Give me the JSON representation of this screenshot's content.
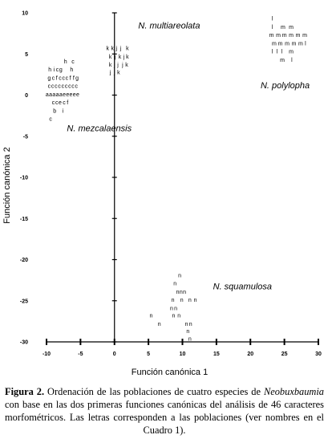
{
  "chart_data": {
    "type": "scatter",
    "xlabel": "Función canónica 1",
    "ylabel": "Función canónica 2",
    "xlim": [
      -10,
      30
    ],
    "ylim": [
      -30,
      10
    ],
    "xticks": [
      -10,
      -5,
      0,
      5,
      10,
      15,
      20,
      25,
      30
    ],
    "yticks": [
      10,
      5,
      0,
      -5,
      -10,
      -15,
      -20,
      -25,
      -30
    ],
    "grid": false,
    "groups": [
      {
        "label": "N. multiareolata",
        "label_pos": [
          3.5,
          8.5
        ]
      },
      {
        "label": "N. polylopha",
        "label_pos": [
          21.5,
          1.2
        ]
      },
      {
        "label": "N. mezcalaensis",
        "label_pos": [
          -7,
          -4
        ]
      },
      {
        "label": "N. squamulosa",
        "label_pos": [
          14.5,
          -23.2
        ]
      }
    ],
    "points": [
      {
        "t": "k",
        "x": -1.0,
        "y": 5.7
      },
      {
        "t": "k",
        "x": -0.3,
        "y": 5.7
      },
      {
        "t": "j",
        "x": 0.3,
        "y": 5.7
      },
      {
        "t": "j",
        "x": 0.9,
        "y": 5.7
      },
      {
        "t": "k",
        "x": 1.9,
        "y": 5.7
      },
      {
        "t": "k",
        "x": -0.6,
        "y": 4.7
      },
      {
        "t": "j",
        "x": 0.1,
        "y": 4.7
      },
      {
        "t": "k",
        "x": 0.8,
        "y": 4.7
      },
      {
        "t": "j",
        "x": 1.4,
        "y": 4.7
      },
      {
        "t": "k",
        "x": 1.9,
        "y": 4.7
      },
      {
        "t": "k",
        "x": -0.6,
        "y": 3.7
      },
      {
        "t": "j",
        "x": 0.0,
        "y": 3.7
      },
      {
        "t": "j",
        "x": 0.5,
        "y": 3.7
      },
      {
        "t": "j",
        "x": 1.2,
        "y": 3.7
      },
      {
        "t": "k",
        "x": 1.8,
        "y": 3.7
      },
      {
        "t": "j",
        "x": -0.6,
        "y": 2.8
      },
      {
        "t": "j",
        "x": 0.0,
        "y": 2.8
      },
      {
        "t": "k",
        "x": 0.6,
        "y": 2.8
      },
      {
        "t": "l",
        "x": 23.2,
        "y": 9.3
      },
      {
        "t": "l",
        "x": 23.2,
        "y": 8.3
      },
      {
        "t": "m",
        "x": 24.8,
        "y": 8.3
      },
      {
        "t": "m",
        "x": 26.0,
        "y": 8.3
      },
      {
        "t": "m",
        "x": 23.1,
        "y": 7.3
      },
      {
        "t": "m",
        "x": 24.1,
        "y": 7.3
      },
      {
        "t": "m",
        "x": 25.0,
        "y": 7.3
      },
      {
        "t": "m",
        "x": 26.0,
        "y": 7.3
      },
      {
        "t": "m",
        "x": 27.0,
        "y": 7.3
      },
      {
        "t": "m",
        "x": 28.0,
        "y": 7.3
      },
      {
        "t": "m",
        "x": 23.5,
        "y": 6.3
      },
      {
        "t": "m",
        "x": 24.4,
        "y": 6.3
      },
      {
        "t": "m",
        "x": 25.4,
        "y": 6.3
      },
      {
        "t": "m",
        "x": 26.4,
        "y": 6.3
      },
      {
        "t": "m",
        "x": 27.4,
        "y": 6.3
      },
      {
        "t": "l",
        "x": 28.1,
        "y": 6.3
      },
      {
        "t": "l",
        "x": 23.2,
        "y": 5.3
      },
      {
        "t": "l",
        "x": 23.9,
        "y": 5.3
      },
      {
        "t": "l",
        "x": 24.6,
        "y": 5.3
      },
      {
        "t": "m",
        "x": 26.0,
        "y": 5.3
      },
      {
        "t": "m",
        "x": 24.7,
        "y": 4.3
      },
      {
        "t": "l",
        "x": 26.1,
        "y": 4.3
      },
      {
        "t": "h",
        "x": -7.2,
        "y": 4.1
      },
      {
        "t": "c",
        "x": -6.1,
        "y": 4.1
      },
      {
        "t": "h",
        "x": -9.5,
        "y": 3.1
      },
      {
        "t": "i",
        "x": -8.9,
        "y": 3.1
      },
      {
        "t": "c",
        "x": -8.4,
        "y": 3.1
      },
      {
        "t": "g",
        "x": -7.9,
        "y": 3.1
      },
      {
        "t": "h",
        "x": -6.3,
        "y": 3.1
      },
      {
        "t": "g",
        "x": -9.6,
        "y": 2.1
      },
      {
        "t": "c",
        "x": -9.0,
        "y": 2.1
      },
      {
        "t": "f",
        "x": -8.5,
        "y": 2.1
      },
      {
        "t": "c",
        "x": -8.0,
        "y": 2.1
      },
      {
        "t": "c",
        "x": -7.5,
        "y": 2.1
      },
      {
        "t": "c",
        "x": -7.0,
        "y": 2.1
      },
      {
        "t": "f",
        "x": -6.5,
        "y": 2.1
      },
      {
        "t": "f",
        "x": -6.0,
        "y": 2.1
      },
      {
        "t": "g",
        "x": -5.5,
        "y": 2.1
      },
      {
        "t": "c",
        "x": -9.6,
        "y": 1.1
      },
      {
        "t": "c",
        "x": -9.1,
        "y": 1.1
      },
      {
        "t": "c",
        "x": -8.6,
        "y": 1.1
      },
      {
        "t": "c",
        "x": -8.1,
        "y": 1.1
      },
      {
        "t": "c",
        "x": -7.6,
        "y": 1.1
      },
      {
        "t": "c",
        "x": -7.1,
        "y": 1.1
      },
      {
        "t": "c",
        "x": -6.6,
        "y": 1.1
      },
      {
        "t": "c",
        "x": -6.1,
        "y": 1.1
      },
      {
        "t": "c",
        "x": -5.6,
        "y": 1.1
      },
      {
        "t": "a",
        "x": -9.9,
        "y": 0.1
      },
      {
        "t": "a",
        "x": -9.4,
        "y": 0.1
      },
      {
        "t": "a",
        "x": -8.9,
        "y": 0.1
      },
      {
        "t": "a",
        "x": -8.4,
        "y": 0.1
      },
      {
        "t": "a",
        "x": -7.9,
        "y": 0.1
      },
      {
        "t": "e",
        "x": -7.4,
        "y": 0.1
      },
      {
        "t": "e",
        "x": -6.9,
        "y": 0.1
      },
      {
        "t": "e",
        "x": -6.4,
        "y": 0.1
      },
      {
        "t": "e",
        "x": -5.9,
        "y": 0.1
      },
      {
        "t": "e",
        "x": -5.4,
        "y": 0.1
      },
      {
        "t": "c",
        "x": -9.0,
        "y": -0.9
      },
      {
        "t": "c",
        "x": -8.5,
        "y": -0.9
      },
      {
        "t": "e",
        "x": -8.0,
        "y": -0.9
      },
      {
        "t": "c",
        "x": -7.4,
        "y": -0.9
      },
      {
        "t": "f",
        "x": -6.9,
        "y": -0.9
      },
      {
        "t": "b",
        "x": -8.8,
        "y": -1.9
      },
      {
        "t": "i",
        "x": -7.6,
        "y": -1.9
      },
      {
        "t": "c",
        "x": -9.4,
        "y": -2.9
      },
      {
        "t": "n",
        "x": 9.6,
        "y": -21.9
      },
      {
        "t": "n",
        "x": 8.9,
        "y": -22.9
      },
      {
        "t": "n",
        "x": 9.3,
        "y": -23.9
      },
      {
        "t": "n",
        "x": 9.8,
        "y": -23.9
      },
      {
        "t": "n",
        "x": 10.3,
        "y": -23.9
      },
      {
        "t": "n",
        "x": 8.6,
        "y": -24.9
      },
      {
        "t": "n",
        "x": 9.9,
        "y": -24.9
      },
      {
        "t": "n",
        "x": 11.1,
        "y": -24.9
      },
      {
        "t": "n",
        "x": 11.9,
        "y": -24.9
      },
      {
        "t": "n",
        "x": 8.4,
        "y": -25.9
      },
      {
        "t": "n",
        "x": 9.0,
        "y": -25.9
      },
      {
        "t": "n",
        "x": 5.4,
        "y": -26.8
      },
      {
        "t": "n",
        "x": 8.7,
        "y": -26.8
      },
      {
        "t": "n",
        "x": 9.5,
        "y": -26.8
      },
      {
        "t": "n",
        "x": 6.6,
        "y": -27.8
      },
      {
        "t": "n",
        "x": 10.6,
        "y": -27.8
      },
      {
        "t": "n",
        "x": 11.2,
        "y": -27.8
      },
      {
        "t": "n",
        "x": 10.8,
        "y": -28.7
      },
      {
        "t": "n",
        "x": 11.1,
        "y": -29.6
      }
    ]
  },
  "caption": {
    "label": "Figura 2.",
    "text_1": " Ordenación de las poblaciones de cuatro especies de ",
    "genus": "Neobuxbaumia",
    "text_2": " con base en las dos primeras funciones canónicas del análisis de 46 caracteres morfométricos. Las letras corresponden a las poblaciones (ver nombres en el Cuadro 1)."
  }
}
